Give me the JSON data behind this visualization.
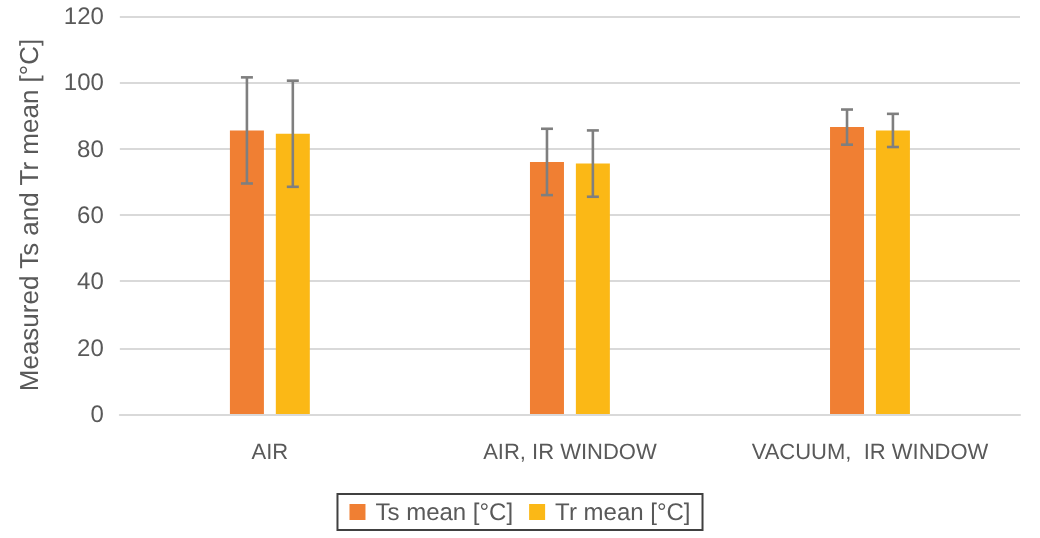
{
  "chart_data": {
    "type": "bar",
    "ylabel": "Measured Ts and Tr mean [°C]",
    "categories": [
      "AIR",
      "AIR, IR WINDOW",
      "VACUUM,  IR WINDOW"
    ],
    "series": [
      {
        "name": "Ts mean [°C]",
        "color": "#f07f33",
        "values": [
          85.5,
          76,
          86.5
        ],
        "errors": [
          16,
          10,
          5.3
        ]
      },
      {
        "name": "Tr mean [°C]",
        "color": "#fbb816",
        "values": [
          84.5,
          75.5,
          85.5
        ],
        "errors": [
          16,
          10,
          5
        ]
      }
    ],
    "ylim": [
      0,
      120
    ],
    "yticks": [
      0,
      20,
      40,
      60,
      80,
      100,
      120
    ],
    "grid": "y",
    "legend": "bottom"
  }
}
